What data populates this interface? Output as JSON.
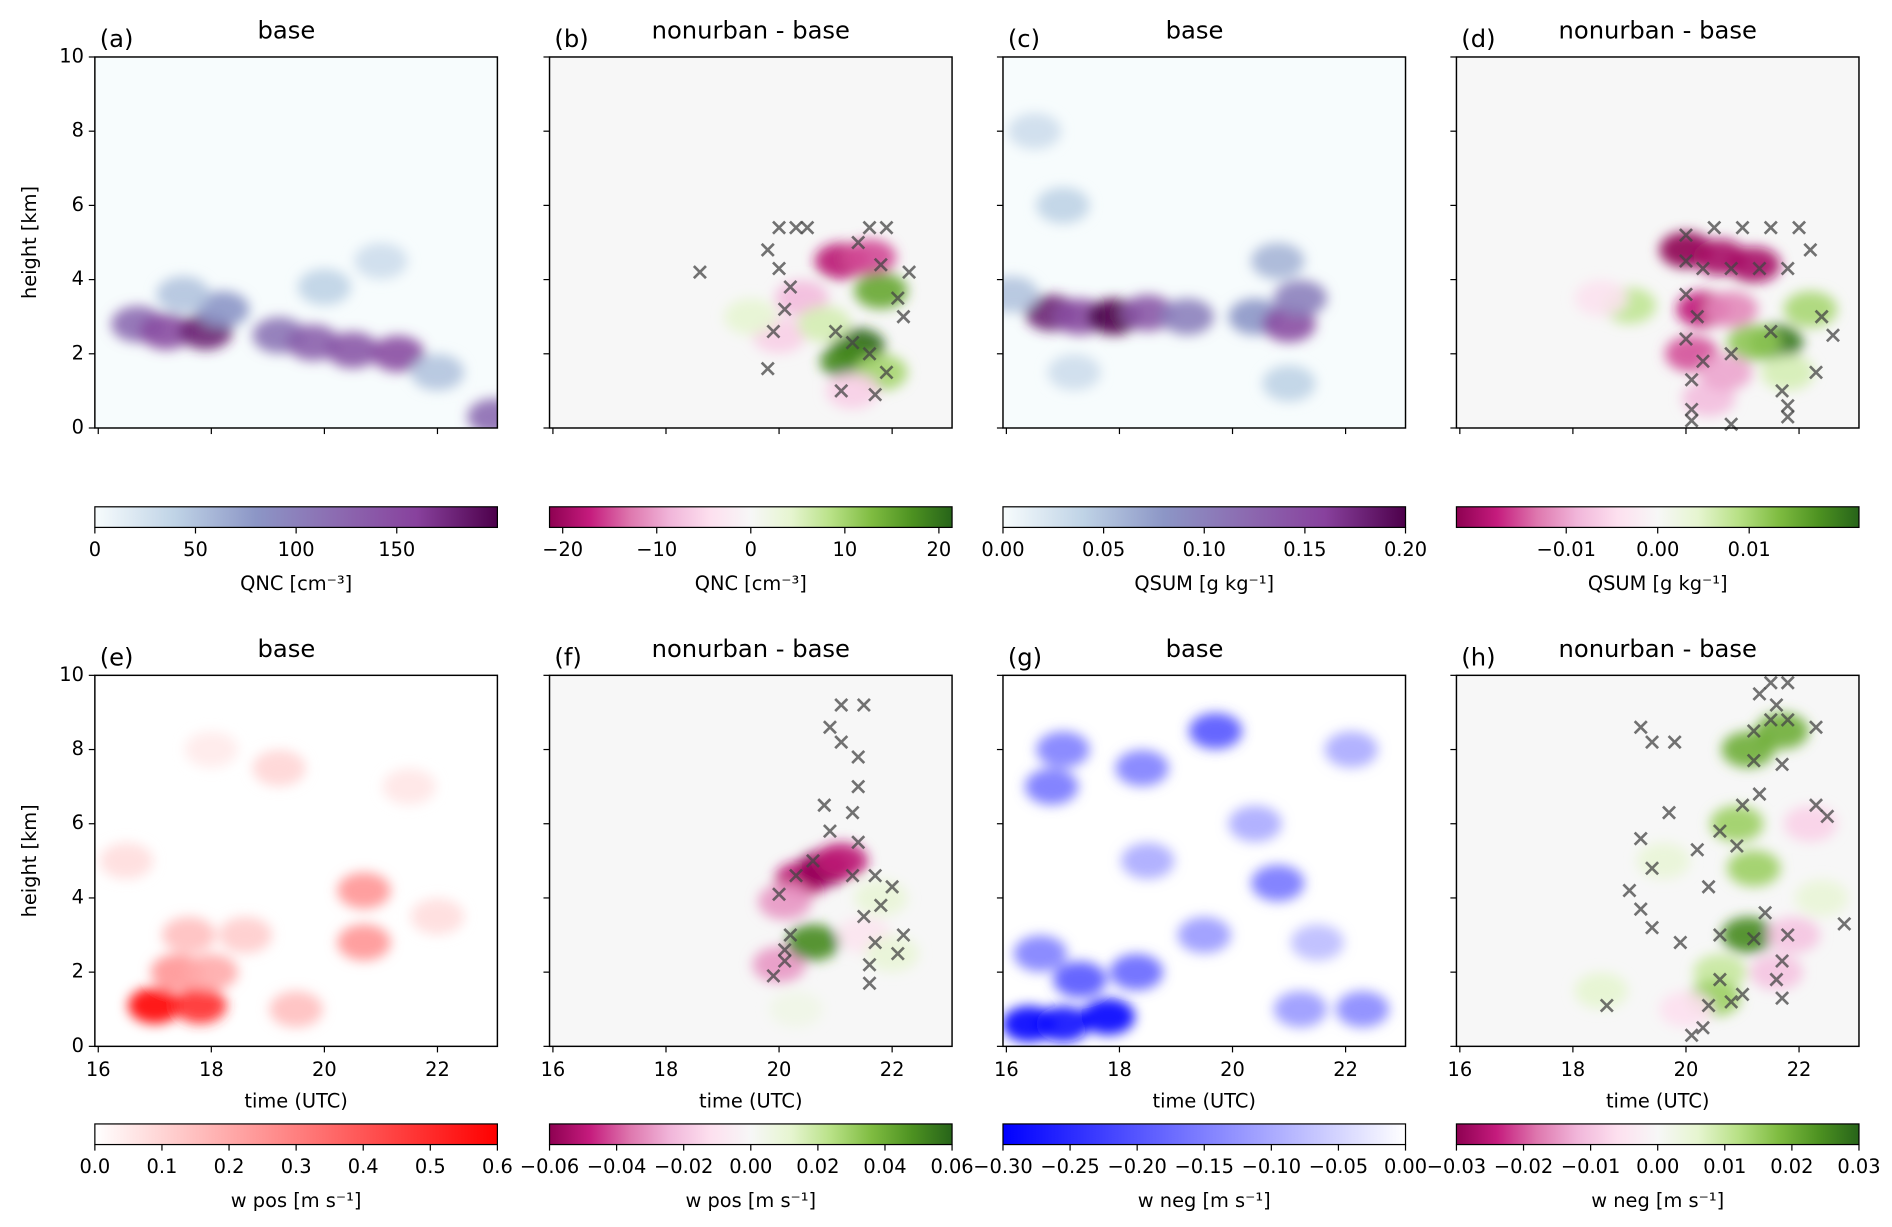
{
  "chart_data": [
    {
      "type": "heatmap",
      "label": "(a)",
      "title": "base",
      "ylabel": "height [km]",
      "xlim": [
        15.94,
        23.06
      ],
      "ylim": [
        0,
        10
      ],
      "xticks": [
        16,
        18,
        20,
        22
      ],
      "yticks": [
        0,
        2,
        4,
        6,
        8,
        10
      ],
      "xticklabels": false,
      "yticklabels": true,
      "cmap": [
        "#f7fcfd",
        "#bfd3e6",
        "#8c96c6",
        "#8c6bb1",
        "#88419d",
        "#4d004b"
      ],
      "clim": [
        0,
        200
      ],
      "cticks": [
        0,
        50,
        100,
        150
      ],
      "clabel": "QNC [cm⁻³]",
      "cells": {
        "t": [
          16.7,
          17.2,
          17.9,
          18.2,
          19.2,
          19.8,
          20.5,
          21.3,
          20,
          21,
          17.5,
          22,
          23
        ],
        "h": [
          2.8,
          2.6,
          2.6,
          3.2,
          2.5,
          2.3,
          2.1,
          2.0,
          3.8,
          4.5,
          3.6,
          1.5,
          0.3
        ],
        "v": [
          120,
          150,
          180,
          80,
          110,
          130,
          140,
          150,
          40,
          30,
          50,
          50,
          120
        ]
      }
    },
    {
      "type": "heatmap",
      "label": "(b)",
      "title": "nonurban - base",
      "xlim": [
        15.94,
        23.06
      ],
      "ylim": [
        0,
        10
      ],
      "xticks": [
        16,
        18,
        20,
        22
      ],
      "yticks": [
        0,
        2,
        4,
        6,
        8,
        10
      ],
      "xticklabels": false,
      "yticklabels": false,
      "cmap": [
        "#8e0152",
        "#c51b7d",
        "#de77ae",
        "#f1b6da",
        "#fde0ef",
        "#f7f7f7",
        "#e6f5d0",
        "#b8e186",
        "#7fbc41",
        "#4d9221",
        "#276419"
      ],
      "clim": [
        -21.4,
        21.4
      ],
      "cticks": [
        {
          "value": -20,
          "label": "−20"
        },
        {
          "value": -10,
          "label": "−10"
        },
        0,
        10,
        20
      ],
      "clabel": "QNC [cm⁻³]",
      "cells": {
        "t": [
          21.1,
          21.6,
          21.8,
          21.4,
          21.2,
          20.4,
          20,
          21.8,
          19.5,
          20.8,
          21.3
        ],
        "h": [
          4.5,
          4.6,
          3.7,
          2.2,
          1.8,
          3.5,
          2.5,
          1.5,
          3.0,
          2.8,
          1
        ],
        "v": [
          -18,
          -15,
          15,
          21,
          18,
          -8,
          -6,
          10,
          4,
          6,
          -6
        ]
      },
      "markers": {
        "x": [
          20,
          20.3,
          20.5,
          19.8,
          20,
          20.2,
          20.1,
          19.9,
          21.6,
          21.9,
          21.4,
          22.3,
          21.8,
          22.1,
          22.2,
          21.3,
          21.6,
          21.1,
          21.7,
          21.9,
          19.8,
          18.6,
          21.0
        ],
        "y": [
          5.4,
          5.4,
          5.4,
          4.8,
          4.3,
          3.8,
          3.2,
          2.6,
          5.4,
          5.4,
          5.0,
          4.2,
          4.4,
          3.5,
          3.0,
          2.3,
          2.0,
          1.0,
          0.9,
          1.5,
          1.6,
          4.2,
          2.6
        ]
      },
      "marker_color": "#444444"
    },
    {
      "type": "heatmap",
      "label": "(c)",
      "title": "base",
      "xlim": [
        15.94,
        23.06
      ],
      "ylim": [
        0,
        10
      ],
      "xticks": [
        16,
        18,
        20,
        22
      ],
      "yticks": [
        0,
        2,
        4,
        6,
        8,
        10
      ],
      "xticklabels": false,
      "yticklabels": false,
      "cmap": [
        "#f7fcfd",
        "#bfd3e6",
        "#8c96c6",
        "#8c6bb1",
        "#88419d",
        "#4d004b"
      ],
      "clim": [
        0,
        0.2
      ],
      "cticks": [
        {
          "value": 0,
          "label": "0.00"
        },
        {
          "value": 0.05,
          "label": "0.05"
        },
        {
          "value": 0.1,
          "label": "0.10"
        },
        {
          "value": 0.15,
          "label": "0.15"
        },
        {
          "value": 0.2,
          "label": "0.20"
        }
      ],
      "clabel": "QSUM [g kg⁻¹]",
      "cells": {
        "t": [
          16.8,
          17.3,
          17.9,
          18.5,
          19.2,
          20.4,
          21.0,
          21.2,
          16.5,
          17,
          20.8,
          17.2,
          21,
          16.1
        ],
        "h": [
          3.1,
          3.0,
          3.0,
          3.1,
          3.0,
          3.0,
          2.8,
          3.5,
          8,
          6,
          4.5,
          1.5,
          1.2,
          3.6
        ],
        "v": [
          0.18,
          0.15,
          0.2,
          0.14,
          0.1,
          0.08,
          0.15,
          0.1,
          0.03,
          0.04,
          0.06,
          0.03,
          0.04,
          0.05
        ]
      }
    },
    {
      "type": "heatmap",
      "label": "(d)",
      "title": "nonurban - base",
      "xlim": [
        15.94,
        23.06
      ],
      "ylim": [
        0,
        10
      ],
      "xticks": [
        16,
        18,
        20,
        22
      ],
      "yticks": [
        0,
        2,
        4,
        6,
        8,
        10
      ],
      "xticklabels": false,
      "yticklabels": false,
      "cmap": [
        "#8e0152",
        "#c51b7d",
        "#de77ae",
        "#f1b6da",
        "#fde0ef",
        "#f7f7f7",
        "#e6f5d0",
        "#b8e186",
        "#7fbc41",
        "#4d9221",
        "#276419"
      ],
      "clim": [
        -0.022,
        0.022
      ],
      "cticks": [
        {
          "value": -0.01,
          "label": "−0.01"
        },
        {
          "value": 0,
          "label": "0.00"
        },
        0.01
      ],
      "clabel": "QSUM [g kg⁻¹]",
      "cells": {
        "t": [
          20,
          20.6,
          21.2,
          20.3,
          20.1,
          20.8,
          21.6,
          21.2,
          22.2,
          19,
          18.5,
          21.8,
          20.4,
          20.7
        ],
        "h": [
          4.8,
          4.6,
          4.4,
          3.2,
          2.0,
          3.2,
          2.3,
          2.3,
          3.2,
          3.3,
          3.5,
          1.5,
          0.8,
          1.5
        ],
        "v": [
          -0.022,
          -0.02,
          -0.02,
          -0.018,
          -0.015,
          -0.012,
          0.02,
          0.012,
          0.01,
          0.008,
          -0.004,
          0.006,
          -0.008,
          -0.01
        ]
      },
      "markers": {
        "x": [
          20,
          20.5,
          21,
          21.5,
          22,
          20,
          20.3,
          20.8,
          21.3,
          21.8,
          20,
          20.2,
          20,
          20.3,
          20.1,
          20.8,
          22.2,
          22.4,
          22.6,
          22.3,
          20.1,
          20.1,
          21.8,
          21.8,
          21.7,
          20.8,
          21.5
        ],
        "y": [
          5.2,
          5.4,
          5.4,
          5.4,
          5.4,
          4.5,
          4.3,
          4.3,
          4.3,
          4.3,
          3.6,
          3.0,
          2.4,
          1.8,
          1.3,
          2.0,
          4.8,
          3.0,
          2.5,
          1.5,
          0.5,
          0.2,
          0.3,
          0.6,
          1.0,
          0.1,
          2.6
        ]
      },
      "marker_color": "#444444"
    },
    {
      "type": "heatmap",
      "label": "(e)",
      "title": "base",
      "ylabel": "height [km]",
      "xlabel": "time (UTC)",
      "xlim": [
        15.94,
        23.06
      ],
      "ylim": [
        0,
        10
      ],
      "xticks": [
        16,
        18,
        20,
        22
      ],
      "yticks": [
        0,
        2,
        4,
        6,
        8,
        10
      ],
      "xticklabels": true,
      "yticklabels": true,
      "cmap": [
        "#ffffff",
        "#ff0000"
      ],
      "clim": [
        0,
        0.6
      ],
      "cticks": [
        {
          "value": 0,
          "label": "0.0"
        },
        0.1,
        0.2,
        0.3,
        0.4,
        0.5,
        0.6
      ],
      "clabel": "w pos [m s⁻¹]",
      "cells": {
        "t": [
          17.0,
          17.8,
          17.4,
          18.0,
          17.6,
          19.5,
          20.7,
          20.7,
          18.6,
          19.2,
          16.5,
          22,
          21.5,
          18
        ],
        "h": [
          1.1,
          1.1,
          2.0,
          2.0,
          3.0,
          1.0,
          4.2,
          2.8,
          3.0,
          7.5,
          5,
          3.5,
          7,
          8
        ],
        "v": [
          0.6,
          0.5,
          0.25,
          0.2,
          0.15,
          0.15,
          0.25,
          0.25,
          0.12,
          0.1,
          0.08,
          0.08,
          0.06,
          0.05
        ]
      }
    },
    {
      "type": "heatmap",
      "label": "(f)",
      "title": "nonurban - base",
      "xlabel": "time (UTC)",
      "xlim": [
        15.94,
        23.06
      ],
      "ylim": [
        0,
        10
      ],
      "xticks": [
        16,
        18,
        20,
        22
      ],
      "yticks": [
        0,
        2,
        4,
        6,
        8,
        10
      ],
      "xticklabels": true,
      "yticklabels": false,
      "cmap": [
        "#8e0152",
        "#c51b7d",
        "#de77ae",
        "#f1b6da",
        "#fde0ef",
        "#f7f7f7",
        "#e6f5d0",
        "#b8e186",
        "#7fbc41",
        "#4d9221",
        "#276419"
      ],
      "clim": [
        -0.06,
        0.06
      ],
      "cticks": [
        {
          "value": -0.06,
          "label": "−0.06"
        },
        {
          "value": -0.04,
          "label": "−0.04"
        },
        {
          "value": -0.02,
          "label": "−0.02"
        },
        {
          "value": 0,
          "label": "0.00"
        },
        0.02,
        0.04,
        0.06
      ],
      "clabel": "w pos [m s⁻¹]",
      "cells": {
        "t": [
          20.4,
          20.8,
          21.1,
          20.1,
          20.0,
          20.6,
          21.5,
          21.8,
          20.3,
          22
        ],
        "h": [
          4.5,
          4.8,
          5.0,
          3.9,
          2.2,
          2.8,
          3,
          4.0,
          1,
          2.5
        ],
        "v": [
          -0.05,
          -0.06,
          -0.05,
          -0.03,
          -0.03,
          0.05,
          -0.01,
          0.01,
          0.005,
          0.01
        ]
      },
      "markers": {
        "x": [
          21.1,
          21.5,
          20.9,
          21.1,
          21.4,
          21.4,
          21.3,
          20.8,
          20.9,
          21.4,
          20.0,
          20.3,
          20.6,
          21.3,
          21.7,
          22.0,
          21.8,
          21.5,
          20.2,
          20.1,
          19.9,
          20.1,
          21.7,
          21.6,
          21.6,
          22.2,
          22.1
        ],
        "y": [
          9.2,
          9.2,
          8.6,
          8.2,
          7.8,
          7.0,
          6.3,
          6.5,
          5.8,
          5.5,
          4.1,
          4.6,
          5.0,
          4.6,
          4.6,
          4.3,
          3.8,
          3.5,
          3.0,
          2.3,
          1.9,
          2.6,
          2.8,
          2.2,
          1.7,
          3.0,
          2.5
        ]
      },
      "marker_color": "#444444"
    },
    {
      "type": "heatmap",
      "label": "(g)",
      "title": "base",
      "xlabel": "time (UTC)",
      "xlim": [
        15.94,
        23.06
      ],
      "ylim": [
        0,
        10
      ],
      "xticks": [
        16,
        18,
        20,
        22
      ],
      "yticks": [
        0,
        2,
        4,
        6,
        8,
        10
      ],
      "xticklabels": true,
      "yticklabels": false,
      "cmap": [
        "#0000ff",
        "#ffffff"
      ],
      "clim": [
        -0.3,
        0
      ],
      "cticks": [
        {
          "value": -0.3,
          "label": "−0.30"
        },
        {
          "value": -0.25,
          "label": "−0.25"
        },
        {
          "value": -0.2,
          "label": "−0.20"
        },
        {
          "value": -0.15,
          "label": "−0.15"
        },
        {
          "value": -0.1,
          "label": "−0.10"
        },
        {
          "value": -0.05,
          "label": "−0.05"
        },
        {
          "value": 0,
          "label": "0.00"
        }
      ],
      "clabel": "w neg [m s⁻¹]",
      "cells": {
        "t": [
          16.4,
          17.0,
          17.8,
          17.3,
          18.3,
          16.6,
          19.7,
          17,
          18.4,
          16.8,
          20.8,
          19.5,
          22.3,
          21.2,
          20.4,
          22.1,
          18.5,
          21.5
        ],
        "h": [
          0.6,
          0.6,
          0.8,
          1.8,
          2.0,
          2.5,
          8.5,
          8.0,
          7.5,
          7.0,
          4.4,
          3.0,
          1.0,
          1.0,
          6.0,
          8.0,
          5,
          2.8
        ],
        "v": [
          -0.3,
          -0.28,
          -0.3,
          -0.2,
          -0.18,
          -0.15,
          -0.2,
          -0.15,
          -0.15,
          -0.16,
          -0.16,
          -0.12,
          -0.14,
          -0.12,
          -0.1,
          -0.1,
          -0.1,
          -0.08
        ]
      }
    },
    {
      "type": "heatmap",
      "label": "(h)",
      "title": "nonurban - base",
      "xlabel": "time (UTC)",
      "xlim": [
        15.94,
        23.06
      ],
      "ylim": [
        0,
        10
      ],
      "xticks": [
        16,
        18,
        20,
        22
      ],
      "yticks": [
        0,
        2,
        4,
        6,
        8,
        10
      ],
      "xticklabels": true,
      "yticklabels": false,
      "cmap": [
        "#8e0152",
        "#c51b7d",
        "#de77ae",
        "#f1b6da",
        "#fde0ef",
        "#f7f7f7",
        "#e6f5d0",
        "#b8e186",
        "#7fbc41",
        "#4d9221",
        "#276419"
      ],
      "clim": [
        -0.03,
        0.03
      ],
      "cticks": [
        {
          "value": -0.03,
          "label": "−0.03"
        },
        {
          "value": -0.02,
          "label": "−0.02"
        },
        {
          "value": -0.01,
          "label": "−0.01"
        },
        {
          "value": 0,
          "label": "0.00"
        },
        0.01,
        0.02,
        0.03
      ],
      "clabel": "w neg [m s⁻¹]",
      "cells": {
        "t": [
          21.1,
          21.7,
          20.9,
          21.2,
          21.1,
          20.6,
          20.5,
          21.6,
          21.9,
          19.6,
          20,
          22.2,
          18.5,
          22.4
        ],
        "h": [
          8,
          8.5,
          6,
          4.8,
          3.0,
          2.0,
          1.3,
          2,
          3.0,
          5,
          1,
          6,
          1.5,
          4
        ],
        "v": [
          0.02,
          0.02,
          0.015,
          0.015,
          0.025,
          0.01,
          0.015,
          -0.01,
          -0.01,
          0.005,
          -0.006,
          -0.008,
          0.006,
          0.005
        ]
      },
      "markers": {
        "x": [
          21.5,
          21.8,
          21.3,
          21.6,
          21.2,
          21.5,
          21.8,
          22.3,
          19.2,
          19.4,
          19.8,
          21.2,
          21.7,
          22.3,
          22.5,
          21.0,
          19.7,
          21.3,
          20.6,
          20.9,
          19.2,
          20.2,
          19.4,
          20.4,
          19.0,
          19.2,
          20.6,
          21.2,
          21.4,
          19.9,
          19.4,
          21.8,
          21.7,
          21.6,
          21.7,
          20.8,
          21.0,
          20.3,
          20.1,
          20.4,
          18.6,
          22.8,
          20.6
        ],
        "y": [
          9.8,
          9.8,
          9.5,
          9.2,
          8.5,
          8.8,
          8.8,
          8.6,
          8.6,
          8.2,
          8.2,
          7.7,
          7.6,
          6.5,
          6.2,
          6.5,
          6.3,
          6.8,
          5.8,
          5.4,
          5.6,
          5.3,
          4.8,
          4.3,
          4.2,
          3.7,
          3.0,
          2.9,
          3.6,
          2.8,
          3.2,
          3.0,
          2.3,
          1.8,
          1.3,
          1.2,
          1.4,
          0.5,
          0.3,
          1.1,
          1.1,
          3.3,
          1.8
        ]
      },
      "marker_color": "#444444"
    }
  ]
}
